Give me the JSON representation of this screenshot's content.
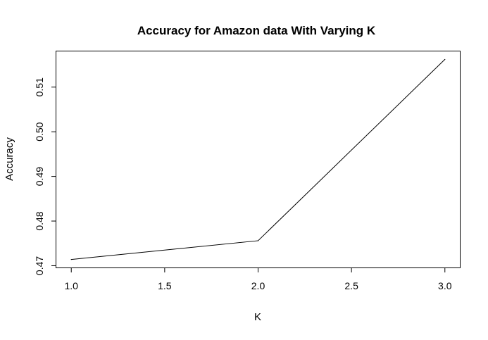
{
  "chart_data": {
    "type": "line",
    "title": "Accuracy for Amazon data With Varying K",
    "xlabel": "K",
    "ylabel": "Accuracy",
    "x": [
      1.0,
      2.0,
      3.0
    ],
    "series": [
      {
        "values": [
          0.4714,
          0.4756,
          0.5162
        ]
      }
    ],
    "xticks": [
      1.0,
      1.5,
      2.0,
      2.5,
      3.0
    ],
    "xtick_labels": [
      "1.0",
      "1.5",
      "2.0",
      "2.5",
      "3.0"
    ],
    "yticks": [
      0.47,
      0.48,
      0.49,
      0.5,
      0.51
    ],
    "ytick_labels": [
      "0.47",
      "0.48",
      "0.49",
      "0.50",
      "0.51"
    ],
    "xlim": [
      0.92,
      3.08
    ],
    "ylim": [
      0.4696,
      0.518
    ],
    "grid": false,
    "legend": "none",
    "line_color": "#000000"
  }
}
